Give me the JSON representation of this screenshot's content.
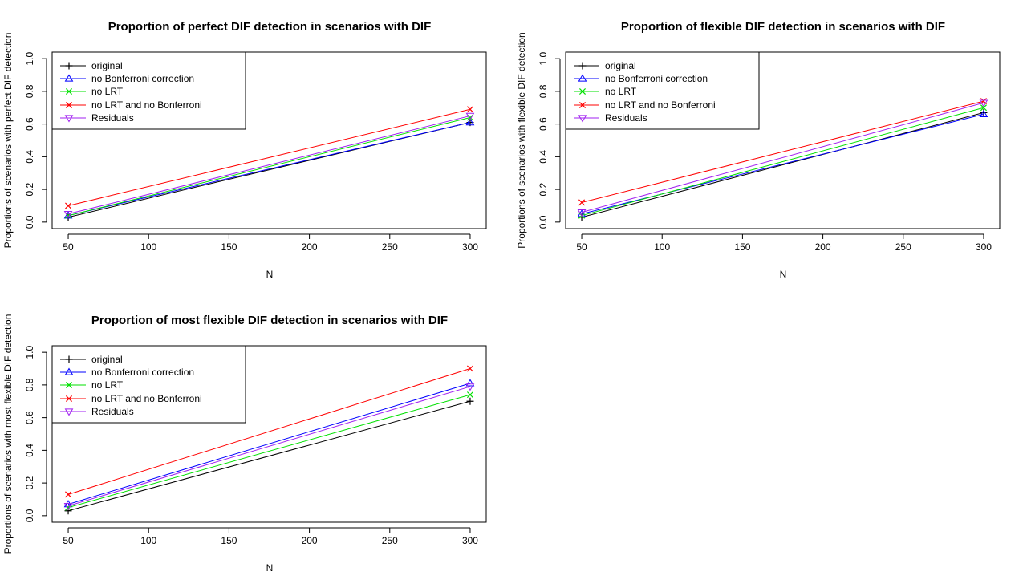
{
  "chart_data": [
    {
      "type": "line",
      "title": "Proportion of perfect DIF detection in scenarios with DIF",
      "xlabel": "N",
      "ylabel": "Proportions of scenarios with perfect DIF detection",
      "x": [
        50,
        300
      ],
      "xticks": [
        50,
        100,
        150,
        200,
        250,
        300
      ],
      "yticks": [
        0.0,
        0.2,
        0.4,
        0.6,
        0.8,
        1.0
      ],
      "ytick_labels": [
        "0.0",
        "0.2",
        "0.4",
        "0.6",
        "0.8",
        "1.0"
      ],
      "xlim": [
        40,
        310
      ],
      "ylim": [
        -0.04,
        1.04
      ],
      "grid": false,
      "legend_position": "top-left",
      "series": [
        {
          "name": "original",
          "color": "#000000",
          "marker": "plus",
          "values": [
            0.03,
            0.61
          ]
        },
        {
          "name": "no Bonferroni correction",
          "color": "#0000ff",
          "marker": "triangle-up",
          "values": [
            0.04,
            0.61
          ]
        },
        {
          "name": "no LRT",
          "color": "#00e000",
          "marker": "cross",
          "values": [
            0.04,
            0.64
          ]
        },
        {
          "name": "no LRT and no Bonferroni",
          "color": "#ff0000",
          "marker": "cross",
          "values": [
            0.1,
            0.69
          ]
        },
        {
          "name": "Residuals",
          "color": "#a020f0",
          "marker": "triangle-down",
          "values": [
            0.05,
            0.65
          ]
        }
      ]
    },
    {
      "type": "line",
      "title": "Proportion of flexible DIF detection in scenarios with DIF",
      "xlabel": "N",
      "ylabel": "Proportions of scenarios with flexible DIF detection",
      "x": [
        50,
        300
      ],
      "xticks": [
        50,
        100,
        150,
        200,
        250,
        300
      ],
      "yticks": [
        0.0,
        0.2,
        0.4,
        0.6,
        0.8,
        1.0
      ],
      "ytick_labels": [
        "0.0",
        "0.2",
        "0.4",
        "0.6",
        "0.8",
        "1.0"
      ],
      "xlim": [
        40,
        310
      ],
      "ylim": [
        -0.04,
        1.04
      ],
      "grid": false,
      "legend_position": "top-left",
      "series": [
        {
          "name": "original",
          "color": "#000000",
          "marker": "plus",
          "values": [
            0.03,
            0.67
          ]
        },
        {
          "name": "no Bonferroni correction",
          "color": "#0000ff",
          "marker": "triangle-up",
          "values": [
            0.05,
            0.66
          ]
        },
        {
          "name": "no LRT",
          "color": "#00e000",
          "marker": "cross",
          "values": [
            0.04,
            0.7
          ]
        },
        {
          "name": "no LRT and no Bonferroni",
          "color": "#ff0000",
          "marker": "cross",
          "values": [
            0.12,
            0.74
          ]
        },
        {
          "name": "Residuals",
          "color": "#a020f0",
          "marker": "triangle-down",
          "values": [
            0.06,
            0.73
          ]
        }
      ]
    },
    {
      "type": "line",
      "title": "Proportion of most flexible DIF detection in scenarios with DIF",
      "xlabel": "N",
      "ylabel": "Proportions of scenarios with most flexible DIF detection",
      "x": [
        50,
        300
      ],
      "xticks": [
        50,
        100,
        150,
        200,
        250,
        300
      ],
      "yticks": [
        0.0,
        0.2,
        0.4,
        0.6,
        0.8,
        1.0
      ],
      "ytick_labels": [
        "0.0",
        "0.2",
        "0.4",
        "0.6",
        "0.8",
        "1.0"
      ],
      "xlim": [
        40,
        310
      ],
      "ylim": [
        -0.04,
        1.04
      ],
      "grid": false,
      "legend_position": "top-left",
      "series": [
        {
          "name": "original",
          "color": "#000000",
          "marker": "plus",
          "values": [
            0.03,
            0.7
          ]
        },
        {
          "name": "no Bonferroni correction",
          "color": "#0000ff",
          "marker": "triangle-up",
          "values": [
            0.07,
            0.81
          ]
        },
        {
          "name": "no LRT",
          "color": "#00e000",
          "marker": "cross",
          "values": [
            0.05,
            0.74
          ]
        },
        {
          "name": "no LRT and no Bonferroni",
          "color": "#ff0000",
          "marker": "cross",
          "values": [
            0.13,
            0.9
          ]
        },
        {
          "name": "Residuals",
          "color": "#a020f0",
          "marker": "triangle-down",
          "values": [
            0.06,
            0.79
          ]
        }
      ]
    }
  ]
}
